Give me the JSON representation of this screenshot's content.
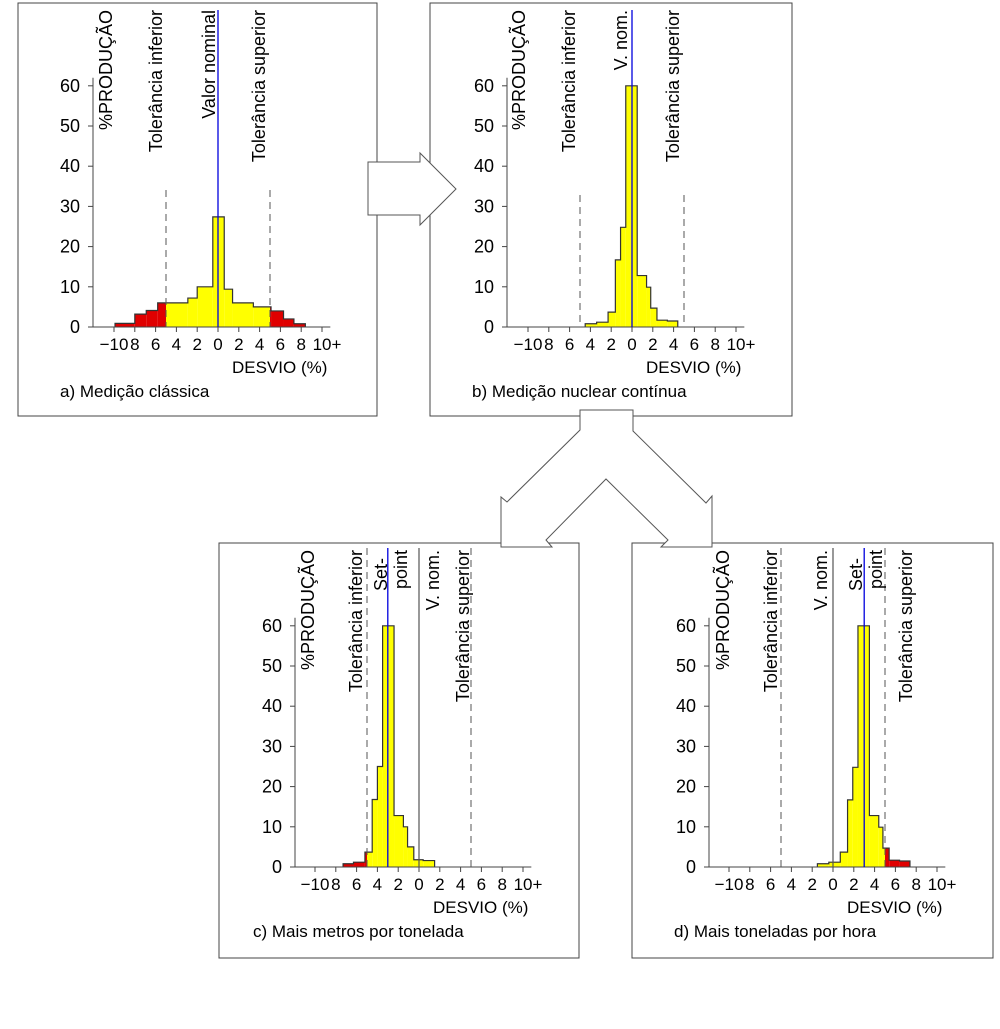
{
  "colors": {
    "in_tolerance": "#ffff00",
    "out_of_tolerance": "#e00000",
    "nominal_line": "#0000dd",
    "outline": "#333333"
  },
  "common": {
    "y_axis_label": "%PRODUÇÃO",
    "x_axis_label": "DESVIO (%)",
    "y_ticks": [
      "0",
      "10",
      "20",
      "30",
      "40",
      "50",
      "60"
    ],
    "x_ticks": [
      "−10",
      "8",
      "6",
      "4",
      "2",
      "0",
      "2",
      "4",
      "6",
      "8",
      "10+"
    ],
    "tol_inf_label": "Tolerância inferior",
    "tol_sup_label": "Tolerância superior"
  },
  "panels": [
    {
      "id": "a",
      "caption": "a) Medição clássica",
      "nominal_label": "Valor nominal",
      "tolerance": [
        -5,
        5
      ],
      "nominal": 0,
      "bins": [
        [
          -9.9,
          -8,
          0.9
        ],
        [
          -8,
          -6.9,
          3.2
        ],
        [
          -6.9,
          -5.8,
          4.1
        ],
        [
          -5.8,
          -2.9,
          6
        ],
        [
          -2.9,
          -2,
          7.2
        ],
        [
          -2,
          -0.5,
          10
        ],
        [
          -0.5,
          0.6,
          27.4
        ],
        [
          0.6,
          1.4,
          9.4
        ],
        [
          1.4,
          3.4,
          6
        ],
        [
          3.4,
          5.1,
          5
        ],
        [
          5.1,
          6.3,
          4
        ],
        [
          6.3,
          7.3,
          2
        ],
        [
          7.3,
          8.4,
          0.8
        ]
      ]
    },
    {
      "id": "b",
      "caption": "b) Medição nuclear contínua",
      "nominal_label": "V. nom.",
      "tolerance": [
        -5,
        5
      ],
      "nominal": 0,
      "bins": [
        [
          -4.5,
          -3.4,
          0.8
        ],
        [
          -3.4,
          -2.3,
          1.2
        ],
        [
          -2.3,
          -1.6,
          3.7
        ],
        [
          -1.6,
          -1.1,
          16.7
        ],
        [
          -1.1,
          -0.6,
          24.8
        ],
        [
          -0.6,
          0.5,
          60
        ],
        [
          0.5,
          1.4,
          12.8
        ],
        [
          1.4,
          1.8,
          9.9
        ],
        [
          1.8,
          2.4,
          4.7
        ],
        [
          2.4,
          3.4,
          1.7
        ],
        [
          3.4,
          4.4,
          1.5
        ]
      ]
    },
    {
      "id": "c",
      "caption": "c) Mais metros por tonelada",
      "nominal_label": "V. nom.",
      "setpoint_label": [
        "Set-",
        "point"
      ],
      "tolerance": [
        -5,
        5
      ],
      "nominal": 0,
      "setpoint": -3,
      "bins": [
        [
          -7.3,
          -6.3,
          0.8
        ],
        [
          -6.3,
          -5.2,
          1.2
        ],
        [
          -5.2,
          -4.5,
          3.7
        ],
        [
          -4.5,
          -4,
          16.8
        ],
        [
          -4,
          -3.5,
          25
        ],
        [
          -3.5,
          -2.4,
          60
        ],
        [
          -2.4,
          -1.5,
          12.8
        ],
        [
          -1.5,
          -1.1,
          10
        ],
        [
          -1.1,
          -0.5,
          5
        ],
        [
          -0.5,
          0.4,
          1.8
        ],
        [
          0.4,
          1.5,
          1.6
        ]
      ]
    },
    {
      "id": "d",
      "caption": "d) Mais toneladas por hora",
      "nominal_label": "V. nom.",
      "setpoint_label": [
        "Set-",
        "point"
      ],
      "tolerance": [
        -5,
        5
      ],
      "nominal": 0,
      "setpoint": 3,
      "bins": [
        [
          -1.5,
          -0.4,
          0.8
        ],
        [
          -0.4,
          0.7,
          1.2
        ],
        [
          0.7,
          1.4,
          3.7
        ],
        [
          1.4,
          1.9,
          16.7
        ],
        [
          1.9,
          2.4,
          24.8
        ],
        [
          2.4,
          3.5,
          60
        ],
        [
          3.5,
          4.4,
          12.8
        ],
        [
          4.4,
          4.8,
          9.9
        ],
        [
          4.8,
          5.4,
          4.7
        ],
        [
          5.4,
          6.4,
          1.7
        ],
        [
          6.4,
          7.4,
          1.5
        ]
      ]
    }
  ]
}
